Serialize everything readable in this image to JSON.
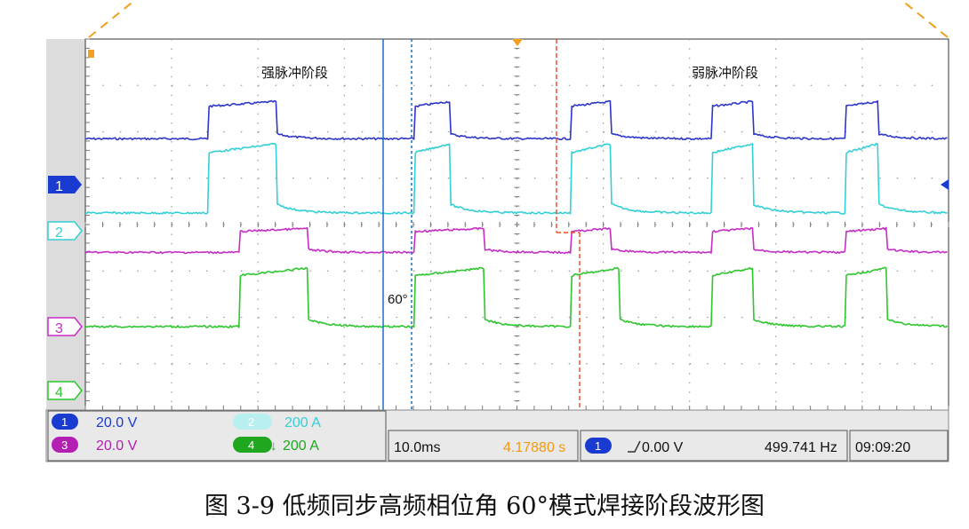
{
  "caption": "图 3-9 低频同步高频相位角 60°模式焊接阶段波形图",
  "chart_data": {
    "type": "line",
    "title": "",
    "xlabel": "",
    "ylabel": "",
    "grid": true,
    "timebase": "10.0ms",
    "x_divisions": 10,
    "y_divisions": 8,
    "phase_annotations": [
      "强脉冲阶段",
      "弱脉冲阶段"
    ],
    "angle_label": "60°",
    "series": [
      {
        "marker": "1",
        "color": "#2e36c8",
        "description_levels_div": [
          5.85,
          6.55
        ],
        "pulse_edges_ms": [
          [
            14.2,
            22.2
          ],
          [
            38.2,
            42.2
          ],
          [
            56.2,
            60.9
          ],
          [
            72.6,
            77.3
          ],
          [
            88.1,
            91.9
          ]
        ]
      },
      {
        "marker": "2",
        "color": "#35cfd6",
        "description_levels_div": [
          4.25,
          5.55
        ],
        "pulse_edges_ms": [
          [
            14.2,
            22.2
          ],
          [
            38.2,
            42.2
          ],
          [
            56.2,
            60.9
          ],
          [
            72.6,
            77.3
          ],
          [
            88.1,
            91.9
          ]
        ]
      },
      {
        "marker": "3",
        "color": "#c52ec5",
        "description_levels_div": [
          3.4,
          3.85
        ],
        "pulse_edges_ms": [
          [
            17.8,
            25.8
          ],
          [
            38.2,
            46.2
          ],
          [
            56.2,
            60.9
          ],
          [
            72.6,
            77.3
          ],
          [
            88.1,
            92.9
          ]
        ]
      },
      {
        "marker": "4",
        "color": "#2ec62e",
        "description_levels_div": [
          1.8,
          2.9
        ],
        "pulse_edges_ms": [
          [
            17.8,
            25.8
          ],
          [
            38.2,
            46.2
          ],
          [
            56.2,
            61.9
          ],
          [
            72.6,
            77.3
          ],
          [
            88.1,
            92.9
          ]
        ]
      }
    ],
    "readouts": {
      "ch1_scale": "20.0 V",
      "ch2_scale": "200 A",
      "ch3_scale": "20.0 V",
      "ch4_scale": "200 A",
      "timebase": "10.0ms",
      "trigger_time": "4.17880 s",
      "trigger_channel": "1",
      "trigger_level": "0.00 V",
      "frequency": "499.741 Hz",
      "clock": "09:09:20"
    },
    "colors": {
      "ch1": "#2e36c8",
      "ch2": "#35cfd6",
      "ch3": "#c52ec5",
      "ch4": "#2ec62e",
      "cursor_blue": "#1f6fc8",
      "cursor_red": "#e8502a",
      "trigger_marker": "#f2a020"
    }
  }
}
